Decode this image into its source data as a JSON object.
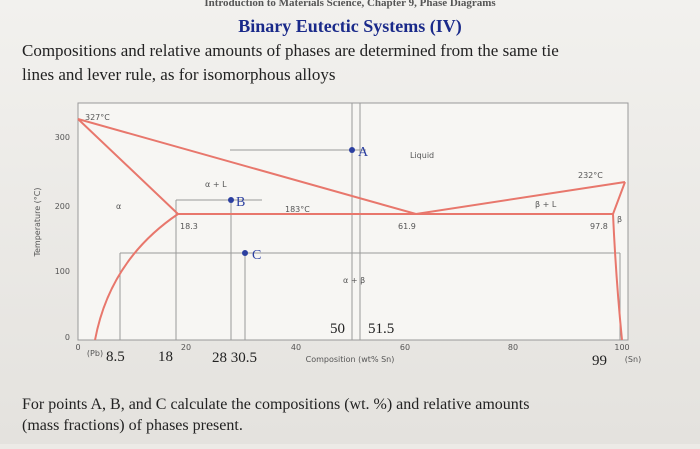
{
  "header": "Introduction to Materials Science, Chapter 9, Phase Diagrams",
  "title": "Binary Eutectic Systems (IV)",
  "intro": [
    "Compositions and relative amounts of phases are determined from the same tie",
    "lines and lever rule, as for isomorphous alloys"
  ],
  "diagram": {
    "y_axis_label": "Temperature (°C)",
    "y_ticks": [
      "300",
      "200",
      "100",
      "0"
    ],
    "x_ticks": [
      "0",
      "20",
      "40",
      "60",
      "80",
      "100"
    ],
    "x_axis_label": "Composition (wt% Sn)",
    "x_end_labels": [
      "(Pb)",
      "(Sn)"
    ],
    "temperatures": [
      "327°C",
      "183°C",
      "232°C"
    ],
    "phase_labels": {
      "liquid": "Liquid",
      "alpha_l": "α + L",
      "alpha": "α",
      "beta_l": "β + L",
      "beta": "β",
      "alpha_beta": "α + β"
    },
    "eutectic_compositions": [
      "18.3",
      "61.9",
      "97.8"
    ],
    "points": [
      "A",
      "B",
      "C"
    ],
    "compositions": [
      "8.5",
      "18",
      "28 30.5",
      "50",
      "51.5",
      "99"
    ]
  },
  "question": [
    "For points A, B, and C calculate the compositions (wt. %) and relative amounts",
    "(mass fractions) of phases present."
  ]
}
